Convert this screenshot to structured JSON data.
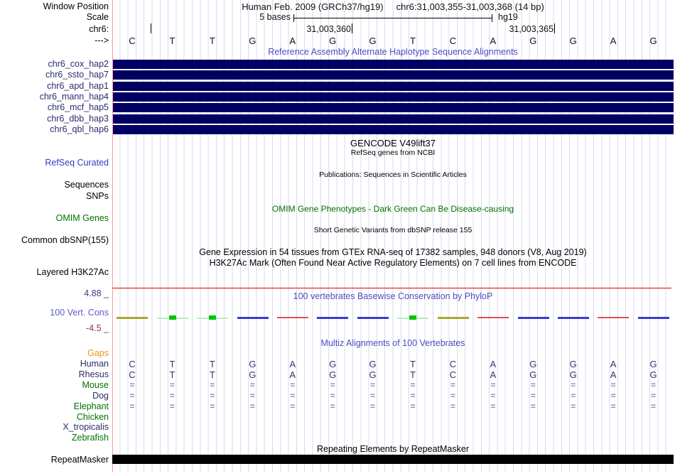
{
  "header": {
    "window_position_label": "Window Position",
    "assembly": "Human Feb. 2009 (GRCh37/hg19)",
    "position": "chr6:31,003,355-31,003,368 (14 bp)",
    "scale_label": "Scale",
    "scale_amount": "5 bases",
    "scale_genome": "hg19",
    "chrom_label": "chr6:",
    "coord_left": "31,003,360",
    "coord_right": "31,003,365",
    "strand_label": "--->",
    "bases": [
      "C",
      "T",
      "T",
      "G",
      "A",
      "G",
      "G",
      "T",
      "C",
      "A",
      "G",
      "G",
      "A",
      "G"
    ]
  },
  "haplotypes": {
    "title": "Reference Assembly Alternate Haplotype Sequence Alignments",
    "bar_color": "#000064",
    "rows": [
      "chr6_cox_hap2",
      "chr6_ssto_hap7",
      "chr6_apd_hap1",
      "chr6_mann_hap4",
      "chr6_mcf_hap5",
      "chr6_dbb_hap3",
      "chr6_qbl_hap6"
    ]
  },
  "genes": {
    "gencode_title": "GENCODE V49lift37",
    "refseq_title": "RefSeq genes from NCBI",
    "refseq_curated_label": "RefSeq Curated",
    "publications_title": "Publications: Sequences in Scientific Articles",
    "sequences_label": "Sequences",
    "snps_label": "SNPs"
  },
  "omim": {
    "label": "OMIM Genes",
    "title": "OMIM Gene Phenotypes - Dark Green Can Be Disease-causing"
  },
  "dbsnp": {
    "label": "Common dbSNP(155)",
    "title": "Short Genetic Variants from dbSNP release 155"
  },
  "regulation": {
    "gtex_title": "Gene Expression in 54 tissues from GTEx RNA-seq of 17382 samples, 948 donors (V8, Aug 2019)",
    "h3k27ac_title": "H3K27Ac Mark (Often Found Near Active Regulatory Elements) on 7 cell lines from ENCODE",
    "h3k27ac_label": "Layered H3K27Ac"
  },
  "conservation": {
    "label": "100 Vert. Cons",
    "title": "100 vertebrates Basewise Conservation by PhyloP",
    "max_label": "4.88 _",
    "min_label": "-4.5 _",
    "values": [
      "olive",
      "green",
      "green",
      "blue",
      "red",
      "blue",
      "blue",
      "green",
      "olive",
      "red",
      "blue",
      "blue",
      "red",
      "blue"
    ],
    "palette": {
      "olive": "#a8a82c",
      "green_line": "#b9ecb9",
      "green_dot": "#00c400",
      "blue": "#3a3ad2",
      "red": "#e05252"
    }
  },
  "multiz": {
    "title": "Multiz Alignments of 100 Vertebrates",
    "gaps_label": "Gaps",
    "species": [
      {
        "name": "Human",
        "label_color": "navy",
        "cells": [
          "C",
          "T",
          "T",
          "G",
          "A",
          "G",
          "G",
          "T",
          "C",
          "A",
          "G",
          "G",
          "A",
          "G"
        ]
      },
      {
        "name": "Rhesus",
        "label_color": "navy",
        "cells": [
          "C",
          "T",
          "T",
          "G",
          "A",
          "G",
          "G",
          "T",
          "C",
          "A",
          "G",
          "G",
          "A",
          "G"
        ]
      },
      {
        "name": "Mouse",
        "label_color": "green",
        "cells": [
          "=",
          "=",
          "=",
          "=",
          "=",
          "=",
          "=",
          "=",
          "=",
          "=",
          "=",
          "=",
          "=",
          "="
        ]
      },
      {
        "name": "Dog",
        "label_color": "navy",
        "cells": [
          "=",
          "=",
          "=",
          "=",
          "=",
          "=",
          "=",
          "=",
          "=",
          "=",
          "=",
          "=",
          "=",
          "="
        ]
      },
      {
        "name": "Elephant",
        "label_color": "green",
        "cells": [
          "=",
          "=",
          "=",
          "=",
          "=",
          "=",
          "=",
          "=",
          "=",
          "=",
          "=",
          "=",
          "=",
          "="
        ]
      },
      {
        "name": "Chicken",
        "label_color": "green",
        "cells": []
      },
      {
        "name": "X_tropicalis",
        "label_color": "navy",
        "cells": []
      },
      {
        "name": "Zebrafish",
        "label_color": "green",
        "cells": []
      }
    ]
  },
  "repeatmasker": {
    "title": "Repeating Elements by RepeatMasker",
    "label": "RepeatMasker"
  }
}
